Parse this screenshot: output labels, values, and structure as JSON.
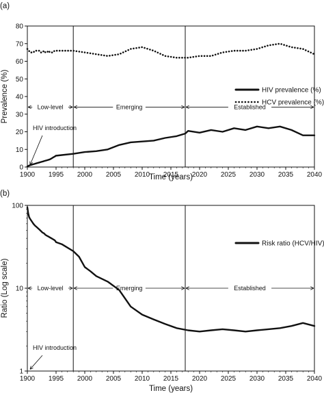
{
  "chart_data": [
    {
      "type": "line",
      "panel_label": "(a)",
      "xlabel": "Time (years)",
      "ylabel": "Prevalence (%)",
      "xlim": [
        1900,
        2040
      ],
      "ylim": [
        0,
        80
      ],
      "xticks": [
        "1900",
        "1905",
        "1910",
        "1915",
        "1920",
        "1925",
        "1930",
        "1935",
        "1940",
        "1945",
        "1950",
        "1955",
        "1960",
        "1965",
        "1970",
        "1975",
        "1980",
        "1985",
        "1990",
        "1995",
        "2000",
        "2005",
        "2010",
        "2015",
        "2020",
        "2025",
        "2030",
        "2035",
        "2040"
      ],
      "xtick_labels": [
        "1900",
        "1995",
        "2000",
        "2005",
        "2010",
        "2015",
        "2020",
        "2025",
        "2030",
        "2035",
        "2040"
      ],
      "yticks": [
        0,
        10,
        20,
        30,
        40,
        50,
        60,
        70,
        80
      ],
      "legend_position": "right",
      "phase_boundaries": [
        1998,
        2017.5
      ],
      "phases": [
        {
          "label": "Low-level",
          "from": 1900,
          "to": 1998
        },
        {
          "label": "Emerging",
          "from": 1998,
          "to": 2017.5
        },
        {
          "label": "Established",
          "from": 2017.5,
          "to": 2040
        }
      ],
      "annotation": "HIV introduction",
      "series": [
        {
          "name": "HIV prevalence (%)",
          "style": "solid",
          "x": [
            1900,
            1902,
            1904,
            1906,
            1908,
            1910,
            1912,
            1914,
            1916,
            1918,
            1920,
            1922,
            1924,
            1926,
            1928,
            1930,
            1932,
            1934,
            1936,
            1938,
            1940,
            1942,
            1944,
            1946,
            1948,
            1950,
            1952,
            1954,
            1956,
            1958,
            1960,
            1962,
            1964,
            1966,
            1968,
            1970,
            1972,
            1974,
            1976,
            1978,
            1980,
            1982,
            1984,
            1986,
            1988,
            1990,
            1992,
            1994,
            1996,
            1998,
            2000,
            2002,
            2004,
            2006,
            2008,
            2010,
            2012,
            2014,
            2016,
            2017.5,
            2018,
            2020,
            2022,
            2024,
            2026,
            2028,
            2030,
            2032,
            2034,
            2036,
            2038,
            2040
          ],
          "y": [
            0.3,
            0.5,
            0.7,
            0.8,
            1.0,
            1.1,
            1.2,
            1.3,
            1.4,
            1.5,
            1.6,
            1.7,
            1.8,
            1.9,
            2.0,
            2.1,
            2.2,
            2.3,
            2.4,
            2.5,
            2.6,
            2.7,
            2.8,
            2.9,
            3.0,
            3.1,
            3.2,
            3.3,
            3.4,
            3.5,
            3.6,
            3.7,
            3.8,
            3.9,
            4.0,
            4.1,
            4.2,
            4.3,
            4.5,
            4.7,
            4.9,
            5.1,
            5.3,
            5.5,
            5.7,
            5.9,
            6.1,
            6.4,
            6.8,
            7.5,
            8.5,
            9.0,
            10.0,
            12.5,
            14.0,
            14.5,
            15.0,
            16.5,
            17.5,
            19.0,
            20.5,
            19.5,
            21.0,
            20.0,
            22.0,
            21.0,
            23.0,
            22.0,
            23.0,
            21.0,
            18.0,
            18.0
          ]
        },
        {
          "name": "HCV prevalence (%)",
          "style": "dotted",
          "x": [
            1900,
            1905,
            1910,
            1915,
            1920,
            1925,
            1930,
            1935,
            1940,
            1945,
            1950,
            1955,
            1960,
            1965,
            1970,
            1975,
            1980,
            1985,
            1990,
            1995,
            1998,
            2000,
            2002,
            2004,
            2006,
            2008,
            2010,
            2012,
            2014,
            2016,
            2018,
            2020,
            2022,
            2024,
            2026,
            2028,
            2030,
            2032,
            2034,
            2036,
            2038,
            2040
          ],
          "y": [
            67,
            66,
            65,
            65,
            65,
            66,
            66,
            66,
            66,
            65,
            65,
            66,
            65,
            65,
            66,
            65,
            65,
            65,
            66,
            66,
            66,
            65,
            64,
            63,
            64,
            67,
            68,
            66,
            63,
            62,
            62,
            63,
            63,
            65,
            66,
            66,
            67,
            69,
            70,
            68,
            67,
            64
          ]
        }
      ]
    },
    {
      "type": "line",
      "panel_label": "(b)",
      "xlabel": "Time (years)",
      "ylabel": "Ratio (Log scale)",
      "xscale": "linear",
      "yscale": "log",
      "xlim": [
        1900,
        2040
      ],
      "ylim": [
        1,
        100
      ],
      "xtick_labels": [
        "1900",
        "1995",
        "2000",
        "2005",
        "2010",
        "2015",
        "2020",
        "2025",
        "2030",
        "2035",
        "2040"
      ],
      "yticks": [
        1,
        10,
        100
      ],
      "legend_position": "right",
      "phase_boundaries": [
        1998,
        2017.5
      ],
      "phases": [
        {
          "label": "Low-level",
          "from": 1900,
          "to": 1998
        },
        {
          "label": "Emerging",
          "from": 1998,
          "to": 2017.5
        },
        {
          "label": "Established",
          "from": 2017.5,
          "to": 2040
        }
      ],
      "annotation": "HIV introduction",
      "series": [
        {
          "name": "Risk ratio (HCV/HIV)",
          "style": "solid",
          "x": [
            1900,
            1903,
            1906,
            1910,
            1915,
            1920,
            1925,
            1930,
            1935,
            1940,
            1945,
            1950,
            1955,
            1960,
            1965,
            1970,
            1975,
            1980,
            1985,
            1990,
            1993,
            1995,
            1996,
            1998,
            1999,
            2000,
            2001,
            2002,
            2004,
            2006,
            2008,
            2010,
            2012,
            2014,
            2016,
            2018,
            2020,
            2022,
            2024,
            2026,
            2028,
            2030,
            2032,
            2034,
            2036,
            2038,
            2040
          ],
          "y": [
            95,
            80,
            72,
            68,
            64,
            60,
            57,
            55,
            53,
            51,
            49,
            47,
            46,
            44,
            43,
            42,
            41,
            40,
            39,
            38,
            37,
            36,
            34,
            28,
            24,
            18,
            16,
            14,
            12,
            9.5,
            6.0,
            4.8,
            4.2,
            3.7,
            3.3,
            3.1,
            3.0,
            3.1,
            3.2,
            3.1,
            3.0,
            3.1,
            3.2,
            3.3,
            3.5,
            3.8,
            3.5
          ]
        }
      ]
    }
  ]
}
